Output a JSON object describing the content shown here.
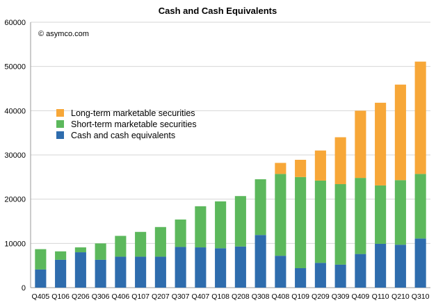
{
  "chart_data": {
    "type": "bar",
    "stacked": true,
    "title": "Cash and Cash Equivalents",
    "annotation": "© asymco.com",
    "ylim": [
      0,
      60000
    ],
    "yticks": [
      0,
      10000,
      20000,
      30000,
      40000,
      50000,
      60000
    ],
    "grid": true,
    "legend_position": "center-left",
    "categories": [
      "Q405",
      "Q106",
      "Q206",
      "Q306",
      "Q406",
      "Q107",
      "Q207",
      "Q307",
      "Q407",
      "Q108",
      "Q208",
      "Q308",
      "Q408",
      "Q109",
      "Q209",
      "Q309",
      "Q409",
      "Q110",
      "Q210",
      "Q310"
    ],
    "series": [
      {
        "name": "Cash and cash equivalents",
        "color": "#2e6cad",
        "values": [
          4100,
          6300,
          8000,
          6300,
          7000,
          7000,
          7000,
          9200,
          9100,
          8900,
          9300,
          11900,
          7200,
          4400,
          5600,
          5200,
          7600,
          9900,
          9700,
          11100
        ]
      },
      {
        "name": "Short-term marketable securities",
        "color": "#5cb85c",
        "values": [
          4600,
          1900,
          1100,
          3700,
          4700,
          5600,
          6700,
          6200,
          9300,
          10600,
          11400,
          12600,
          18500,
          20600,
          18600,
          18200,
          17200,
          13200,
          14600,
          14600
        ]
      },
      {
        "name": "Long-term marketable securities",
        "color": "#f7a738",
        "values": [
          0,
          0,
          0,
          0,
          0,
          0,
          0,
          0,
          0,
          0,
          0,
          0,
          2500,
          3900,
          6800,
          10600,
          15200,
          18700,
          21600,
          25400
        ]
      }
    ]
  }
}
